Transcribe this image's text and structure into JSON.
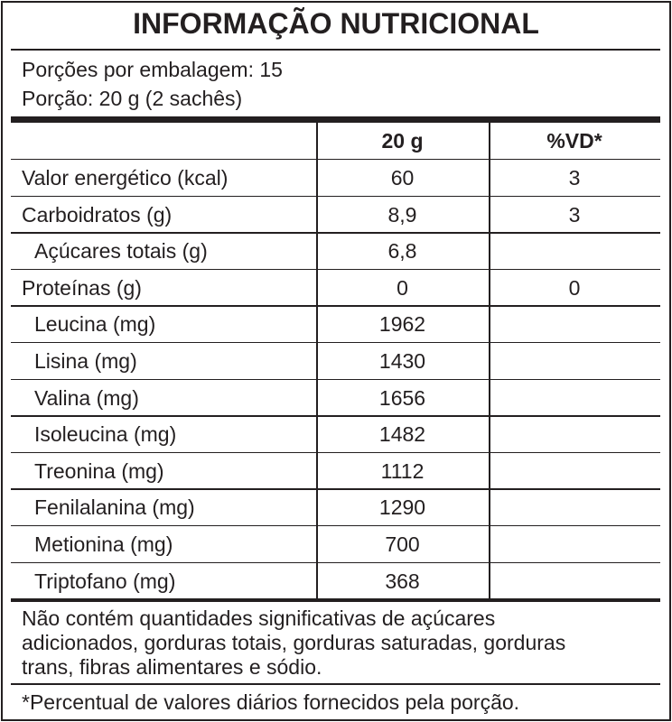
{
  "title": "INFORMAÇÃO NUTRICIONAL",
  "servings_per_package": "Porções por embalagem: 15",
  "serving_size": "Porção: 20 g (2 sachês)",
  "columns": [
    "",
    "20 g",
    "%VD*"
  ],
  "rows": [
    {
      "label": "Valor energético (kcal)",
      "amount": "60",
      "dv": "3",
      "sub": false
    },
    {
      "label": "Carboidratos (g)",
      "amount": "8,9",
      "dv": "3",
      "sub": false
    },
    {
      "label": "Açúcares totais (g)",
      "amount": "6,8",
      "dv": "",
      "sub": true
    },
    {
      "label": "Proteínas (g)",
      "amount": "0",
      "dv": "0",
      "sub": false
    },
    {
      "label": "Leucina (mg)",
      "amount": "1962",
      "dv": "",
      "sub": true
    },
    {
      "label": "Lisina (mg)",
      "amount": "1430",
      "dv": "",
      "sub": true
    },
    {
      "label": "Valina (mg)",
      "amount": "1656",
      "dv": "",
      "sub": true
    },
    {
      "label": "Isoleucina (mg)",
      "amount": "1482",
      "dv": "",
      "sub": true
    },
    {
      "label": "Treonina (mg)",
      "amount": "1112",
      "dv": "",
      "sub": true
    },
    {
      "label": "Fenilalanina (mg)",
      "amount": "1290",
      "dv": "",
      "sub": true
    },
    {
      "label": "Metionina (mg)",
      "amount": "700",
      "dv": "",
      "sub": true
    },
    {
      "label": "Triptofano (mg)",
      "amount": "368",
      "dv": "",
      "sub": true
    }
  ],
  "note_lines": [
    "Não contém quantidades significativas de açúcares",
    "adicionados, gorduras totais, gorduras saturadas, gorduras",
    "trans, fibras alimentares e sódio."
  ],
  "footnote": "*Percentual de valores diários fornecidos pela porção."
}
